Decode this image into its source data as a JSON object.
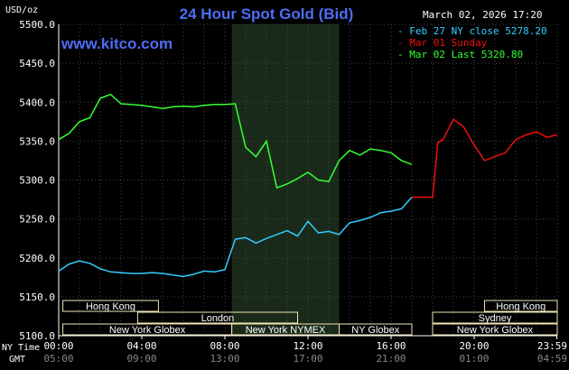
{
  "header": {
    "unit": "USD/oz",
    "title": "24 Hour Spot Gold (Bid)",
    "date": "March 02, 2026 17:20",
    "site": "www.kitco.com"
  },
  "colors": {
    "background": "#000000",
    "title": "#4f6cf5",
    "feb27": "#33ccff",
    "mar01": "#ee1111",
    "mar02": "#33ff33",
    "axis_text": "#ffffff",
    "gmt_text": "#888888",
    "session_box": "#f0e6b4",
    "session_text": "#ffffff",
    "nymex_shade": "#1a2a1a"
  },
  "chart_data": {
    "type": "line",
    "ylim": [
      5100,
      5500
    ],
    "y_ticks": [
      "5500.0",
      "5450.0",
      "5400.0",
      "5350.0",
      "5300.0",
      "5250.0",
      "5200.0",
      "5150.0",
      "5100.0"
    ],
    "x_tick_labels": [
      "00:00",
      "04:00",
      "08:00",
      "12:00",
      "16:00",
      "20:00",
      "23:59"
    ],
    "gmt_tick_labels": [
      "05:00",
      "09:00",
      "13:00",
      "17:00",
      "21:00",
      "01:00",
      "04:59"
    ],
    "x_row_label": "NY Time",
    "gmt_row_label": "GMT",
    "legend": [
      "Feb 27 NY close 5278.20",
      "Mar 01 Sunday",
      "Mar 02 Last 5320.80"
    ],
    "series": [
      {
        "name": "Feb 27 NY close 5278.20",
        "x_hours": [
          0,
          0.5,
          1,
          1.5,
          2,
          2.5,
          3,
          3.5,
          4,
          4.5,
          5,
          5.5,
          6,
          6.5,
          7,
          7.5,
          8,
          8.5,
          9,
          9.5,
          10,
          10.5,
          11,
          11.5,
          12,
          12.5,
          13,
          13.5,
          14,
          14.5,
          15,
          15.5,
          16,
          16.5,
          17
        ],
        "values": [
          5183,
          5192,
          5196,
          5193,
          5186,
          5182,
          5181,
          5180,
          5180,
          5181,
          5180,
          5178,
          5176,
          5179,
          5183,
          5182,
          5185,
          5224,
          5226,
          5219,
          5225,
          5230,
          5235,
          5228,
          5247,
          5232,
          5234,
          5230,
          5245,
          5248,
          5252,
          5258,
          5260,
          5263,
          5278
        ]
      },
      {
        "name": "Mar 01 Sunday",
        "x_hours": [
          17,
          17.5,
          18,
          18.25,
          18.5,
          19,
          19.5,
          20,
          20.5,
          21,
          21.5,
          22,
          22.5,
          23,
          23.5,
          24
        ],
        "values": [
          5278,
          5278,
          5278,
          5348,
          5352,
          5378,
          5368,
          5345,
          5325,
          5330,
          5335,
          5352,
          5358,
          5362,
          5355,
          5358
        ]
      },
      {
        "name": "Mar 02 Last 5320.80",
        "x_hours": [
          0,
          0.5,
          1,
          1.5,
          2,
          2.5,
          3,
          3.5,
          4,
          4.5,
          5,
          5.5,
          6,
          6.5,
          7,
          7.5,
          8,
          8.5,
          9,
          9.5,
          10,
          10.5,
          11,
          11.5,
          12,
          12.5,
          13,
          13.5,
          14,
          14.5,
          15,
          15.5,
          16,
          16.5,
          17
        ],
        "values": [
          5352,
          5360,
          5375,
          5380,
          5405,
          5410,
          5398,
          5397,
          5396,
          5394,
          5392,
          5394,
          5395,
          5394,
          5396,
          5397,
          5397,
          5398,
          5342,
          5330,
          5350,
          5290,
          5295,
          5302,
          5310,
          5300,
          5298,
          5325,
          5338,
          5332,
          5340,
          5338,
          5335,
          5325,
          5320
        ]
      }
    ],
    "shaded_region_hours": [
      8.33,
      13.5
    ],
    "sessions": [
      {
        "label": "Hong Kong",
        "start": 0.2,
        "end": 4.8,
        "row": 0
      },
      {
        "label": "London",
        "start": 3.8,
        "end": 11.5,
        "row": 1
      },
      {
        "label": "New York Globex",
        "start": 0.2,
        "end": 8.33,
        "row": 2
      },
      {
        "label": "New York NYMEX",
        "start": 8.33,
        "end": 13.5,
        "row": 2
      },
      {
        "label": "NY Globex",
        "start": 13.5,
        "end": 17.0,
        "row": 2
      },
      {
        "label": "Hong Kong",
        "start": 20.5,
        "end": 24,
        "row": 0
      },
      {
        "label": "Sydney",
        "start": 18.0,
        "end": 24,
        "row": 1
      },
      {
        "label": "New York Globex",
        "start": 18.0,
        "end": 24,
        "row": 2
      }
    ]
  }
}
